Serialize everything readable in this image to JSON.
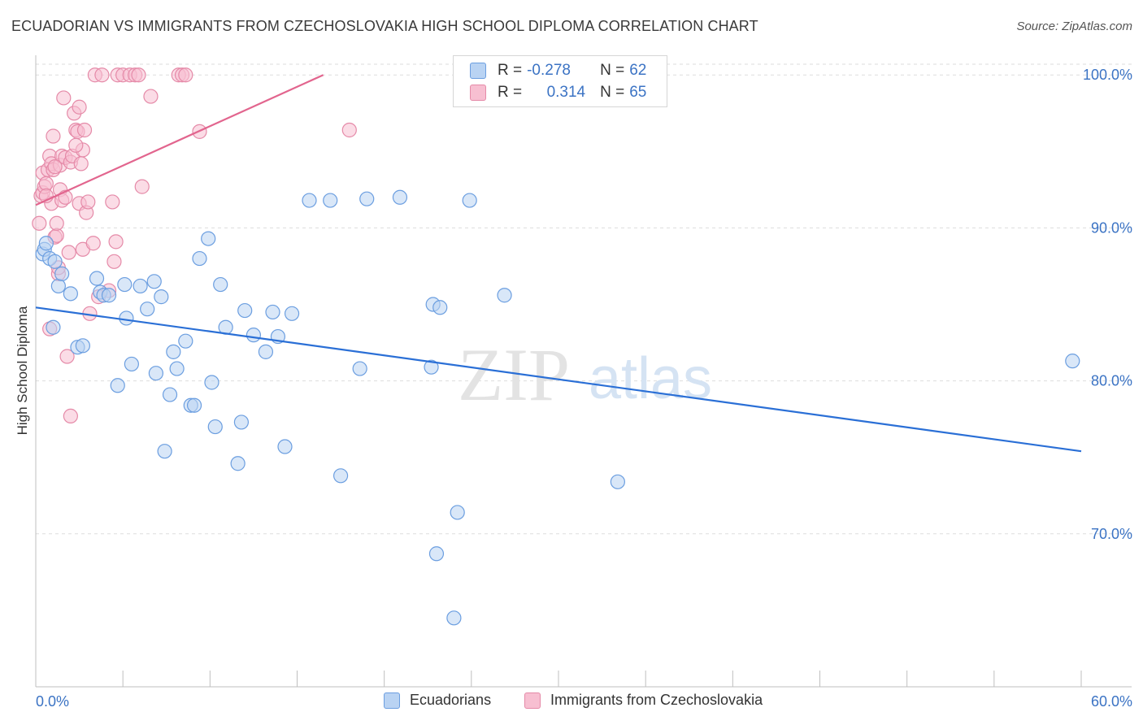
{
  "title": "ECUADORIAN VS IMMIGRANTS FROM CZECHOSLOVAKIA HIGH SCHOOL DIPLOMA CORRELATION CHART",
  "source": "Source: ZipAtlas.com",
  "watermark": {
    "zip": "ZIP",
    "atlas": "atlas"
  },
  "legend": {
    "rows": [
      {
        "r_label": "R = ",
        "r_value": "-0.278",
        "n_label": "N = ",
        "n_value": "62"
      },
      {
        "r_label": "R = ",
        "r_value": "0.314",
        "n_label": "N = ",
        "n_value": "65"
      }
    ]
  },
  "colors": {
    "blue_fill": "#b9d3f3",
    "blue_stroke": "#6b9ee0",
    "blue_line": "#2a6fd6",
    "pink_fill": "#f7bfd1",
    "pink_stroke": "#e58aa8",
    "pink_line": "#e2658e",
    "tick_label": "#3b73c4",
    "grid": "#dddddd"
  },
  "chart_data": {
    "type": "scatter",
    "ylabel": "High School Diploma",
    "xlim": [
      0,
      60
    ],
    "ylim": [
      60,
      101.5
    ],
    "x_tick_labels": [
      "0.0%",
      "60.0%"
    ],
    "y_ticks": [
      70,
      80,
      90,
      100
    ],
    "y_tick_labels": [
      "70.0%",
      "80.0%",
      "90.0%",
      "100.0%"
    ],
    "grid": true,
    "legend_position": "top-center",
    "series": [
      {
        "name": "Ecuadorians",
        "color": "#6b9ee0",
        "trend": {
          "x": [
            0,
            60
          ],
          "y": [
            84.8,
            75.4
          ]
        },
        "points": [
          [
            0.4,
            88.3
          ],
          [
            0.5,
            88.6
          ],
          [
            0.6,
            89.0
          ],
          [
            0.8,
            88.0
          ],
          [
            1.1,
            87.8
          ],
          [
            1.3,
            86.2
          ],
          [
            1.5,
            87.0
          ],
          [
            2.0,
            85.7
          ],
          [
            2.4,
            82.2
          ],
          [
            2.7,
            82.3
          ],
          [
            3.5,
            86.7
          ],
          [
            3.7,
            85.8
          ],
          [
            3.9,
            85.6
          ],
          [
            4.2,
            85.6
          ],
          [
            4.7,
            79.7
          ],
          [
            5.1,
            86.3
          ],
          [
            5.2,
            84.1
          ],
          [
            5.5,
            81.1
          ],
          [
            6.0,
            86.2
          ],
          [
            6.4,
            84.7
          ],
          [
            6.8,
            86.5
          ],
          [
            6.9,
            80.5
          ],
          [
            7.2,
            85.5
          ],
          [
            7.4,
            75.4
          ],
          [
            7.7,
            79.1
          ],
          [
            7.9,
            81.9
          ],
          [
            8.1,
            80.8
          ],
          [
            8.6,
            82.6
          ],
          [
            8.9,
            78.4
          ],
          [
            9.1,
            78.4
          ],
          [
            9.4,
            88.0
          ],
          [
            9.9,
            89.3
          ],
          [
            10.1,
            79.9
          ],
          [
            10.3,
            77.0
          ],
          [
            10.6,
            86.3
          ],
          [
            10.9,
            83.5
          ],
          [
            11.6,
            74.6
          ],
          [
            11.8,
            77.3
          ],
          [
            12.0,
            84.6
          ],
          [
            12.5,
            83.0
          ],
          [
            13.2,
            81.9
          ],
          [
            13.6,
            84.5
          ],
          [
            13.9,
            82.9
          ],
          [
            14.3,
            75.7
          ],
          [
            14.7,
            84.4
          ],
          [
            15.7,
            91.8
          ],
          [
            16.9,
            91.8
          ],
          [
            17.5,
            73.8
          ],
          [
            18.6,
            80.8
          ],
          [
            19.0,
            91.9
          ],
          [
            20.9,
            92.0
          ],
          [
            22.7,
            80.9
          ],
          [
            22.8,
            85.0
          ],
          [
            23.2,
            84.8
          ],
          [
            23.0,
            68.7
          ],
          [
            24.2,
            71.4
          ],
          [
            24.0,
            64.5
          ],
          [
            24.9,
            91.8
          ],
          [
            26.9,
            85.6
          ],
          [
            33.4,
            73.4
          ],
          [
            59.5,
            81.3
          ],
          [
            1.0,
            83.5
          ]
        ]
      },
      {
        "name": "Immigrants from Czechoslovakia",
        "color": "#e58aa8",
        "trend": {
          "x": [
            0,
            16.5
          ],
          "y": [
            91.5,
            100.0
          ]
        },
        "points": [
          [
            0.2,
            90.3
          ],
          [
            0.3,
            92.1
          ],
          [
            0.4,
            92.3
          ],
          [
            0.4,
            93.6
          ],
          [
            0.5,
            92.7
          ],
          [
            0.6,
            92.9
          ],
          [
            0.7,
            93.8
          ],
          [
            0.8,
            94.7
          ],
          [
            0.8,
            83.4
          ],
          [
            0.9,
            94.2
          ],
          [
            0.9,
            91.6
          ],
          [
            1.0,
            96.0
          ],
          [
            1.0,
            93.8
          ],
          [
            1.1,
            89.4
          ],
          [
            1.2,
            89.5
          ],
          [
            1.2,
            90.3
          ],
          [
            1.3,
            87.0
          ],
          [
            1.3,
            87.4
          ],
          [
            1.4,
            92.5
          ],
          [
            1.4,
            94.1
          ],
          [
            1.5,
            94.7
          ],
          [
            1.5,
            91.8
          ],
          [
            1.6,
            98.5
          ],
          [
            1.7,
            92.0
          ],
          [
            1.7,
            94.6
          ],
          [
            1.8,
            81.6
          ],
          [
            1.9,
            88.4
          ],
          [
            2.0,
            94.3
          ],
          [
            2.0,
            77.7
          ],
          [
            2.1,
            94.7
          ],
          [
            2.2,
            97.5
          ],
          [
            2.3,
            96.4
          ],
          [
            2.4,
            96.3
          ],
          [
            2.5,
            97.9
          ],
          [
            2.5,
            91.6
          ],
          [
            2.6,
            94.2
          ],
          [
            2.7,
            88.6
          ],
          [
            2.7,
            95.1
          ],
          [
            2.8,
            96.4
          ],
          [
            2.9,
            91.0
          ],
          [
            3.0,
            91.7
          ],
          [
            3.1,
            84.4
          ],
          [
            3.3,
            89.0
          ],
          [
            3.4,
            100.0
          ],
          [
            3.6,
            85.5
          ],
          [
            3.8,
            100.0
          ],
          [
            4.2,
            85.9
          ],
          [
            4.4,
            91.7
          ],
          [
            4.5,
            87.8
          ],
          [
            4.6,
            89.1
          ],
          [
            4.7,
            100.0
          ],
          [
            5.0,
            100.0
          ],
          [
            5.4,
            100.0
          ],
          [
            5.7,
            100.0
          ],
          [
            5.9,
            100.0
          ],
          [
            6.1,
            92.7
          ],
          [
            6.6,
            98.6
          ],
          [
            8.2,
            100.0
          ],
          [
            8.4,
            100.0
          ],
          [
            8.6,
            100.0
          ],
          [
            9.4,
            96.3
          ],
          [
            18.0,
            96.4
          ],
          [
            0.6,
            92.1
          ],
          [
            1.1,
            94.0
          ],
          [
            2.3,
            95.4
          ]
        ]
      }
    ]
  }
}
